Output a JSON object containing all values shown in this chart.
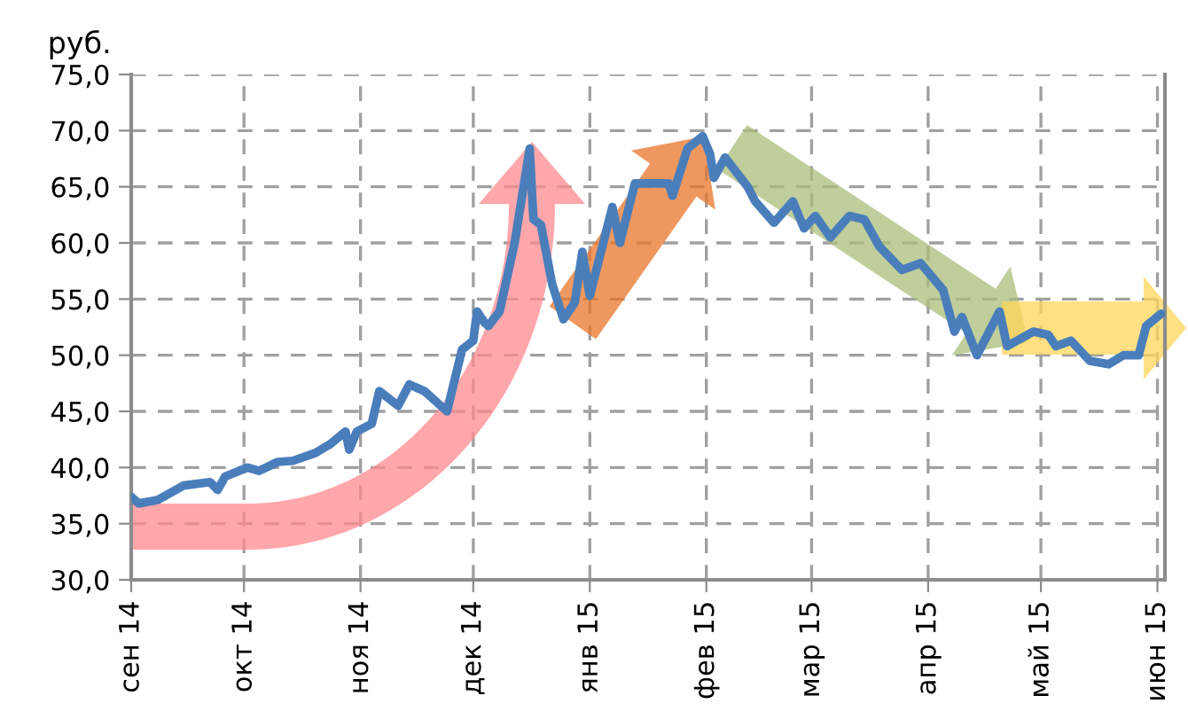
{
  "chart_data": {
    "type": "line",
    "ylabel": "руб.",
    "x": [
      "2014-09-01",
      "2014-09-03",
      "2014-09-08",
      "2014-09-15",
      "2014-09-22",
      "2014-09-24",
      "2014-09-26",
      "2014-10-02",
      "2014-10-05",
      "2014-10-10",
      "2014-10-14",
      "2014-10-20",
      "2014-10-24",
      "2014-10-28",
      "2014-10-29",
      "2014-10-31",
      "2014-11-04",
      "2014-11-06",
      "2014-11-11",
      "2014-11-14",
      "2014-11-18",
      "2014-11-24",
      "2014-11-28",
      "2014-12-01",
      "2014-12-02",
      "2014-12-04",
      "2014-12-05",
      "2014-12-08",
      "2014-12-12",
      "2014-12-16",
      "2014-12-17",
      "2014-12-19",
      "2014-12-22",
      "2014-12-25",
      "2014-12-28",
      "2014-12-30",
      "2015-01-01",
      "2015-01-07",
      "2015-01-09",
      "2015-01-13",
      "2015-01-22",
      "2015-01-23",
      "2015-01-27",
      "2015-01-31",
      "2015-02-02",
      "2015-02-03",
      "2015-02-06",
      "2015-02-12",
      "2015-02-14",
      "2015-02-19",
      "2015-02-24",
      "2015-02-27",
      "2015-03-02",
      "2015-03-06",
      "2015-03-11",
      "2015-03-15",
      "2015-03-19",
      "2015-03-25",
      "2015-03-30",
      "2015-04-05",
      "2015-04-08",
      "2015-04-10",
      "2015-04-14",
      "2015-04-20",
      "2015-04-22",
      "2015-04-29",
      "2015-05-03",
      "2015-05-05",
      "2015-05-09",
      "2015-05-14",
      "2015-05-19",
      "2015-05-23",
      "2015-05-27",
      "2015-05-29",
      "2015-06-02"
    ],
    "series": [
      {
        "color": "#4a7ebb",
        "values": [
          37.4,
          36.8,
          37.1,
          38.4,
          38.7,
          38.0,
          39.2,
          40.0,
          39.7,
          40.5,
          40.6,
          41.3,
          42.1,
          43.2,
          41.6,
          43.2,
          43.9,
          46.8,
          45.5,
          47.4,
          46.8,
          45.0,
          50.5,
          51.3,
          53.9,
          52.9,
          52.6,
          53.9,
          60.0,
          68.4,
          62.1,
          61.6,
          56.3,
          53.2,
          54.7,
          59.2,
          55.3,
          63.2,
          60.0,
          65.3,
          65.3,
          64.2,
          68.4,
          69.5,
          67.9,
          65.8,
          67.6,
          65.0,
          63.7,
          61.8,
          63.7,
          61.3,
          62.4,
          60.5,
          62.4,
          62.1,
          59.7,
          57.6,
          58.2,
          55.8,
          52.1,
          53.4,
          50.0,
          53.9,
          50.8,
          52.1,
          51.8,
          50.8,
          51.3,
          49.5,
          49.2,
          50.0,
          50.0,
          52.6,
          53.7
        ]
      }
    ],
    "xlim": [
      "2014-09-01",
      "2015-06-03"
    ],
    "xticks": [
      {
        "value": "2014-09-01",
        "label": "сен 14"
      },
      {
        "value": "2014-10-01",
        "label": "окт 14"
      },
      {
        "value": "2014-11-01",
        "label": "ноя 14"
      },
      {
        "value": "2014-12-01",
        "label": "дек 14"
      },
      {
        "value": "2015-01-01",
        "label": "янв 15"
      },
      {
        "value": "2015-02-01",
        "label": "фев 15"
      },
      {
        "value": "2015-03-01",
        "label": "мар 15"
      },
      {
        "value": "2015-04-01",
        "label": "апр 15"
      },
      {
        "value": "2015-05-01",
        "label": "май 15"
      },
      {
        "value": "2015-06-01",
        "label": "июн 15"
      }
    ],
    "ylim": [
      30,
      75
    ],
    "yticks": [
      {
        "value": 30,
        "label": "30,0"
      },
      {
        "value": 35,
        "label": "35,0"
      },
      {
        "value": 40,
        "label": "40,0"
      },
      {
        "value": 45,
        "label": "45,0"
      },
      {
        "value": 50,
        "label": "50,0"
      },
      {
        "value": 55,
        "label": "55,0"
      },
      {
        "value": 60,
        "label": "60,0"
      },
      {
        "value": 65,
        "label": "65,0"
      },
      {
        "value": 70,
        "label": "70,0"
      },
      {
        "value": 75,
        "label": "75,0"
      }
    ],
    "grid": true,
    "line_style": "solid",
    "marker": "none",
    "legend": false
  }
}
